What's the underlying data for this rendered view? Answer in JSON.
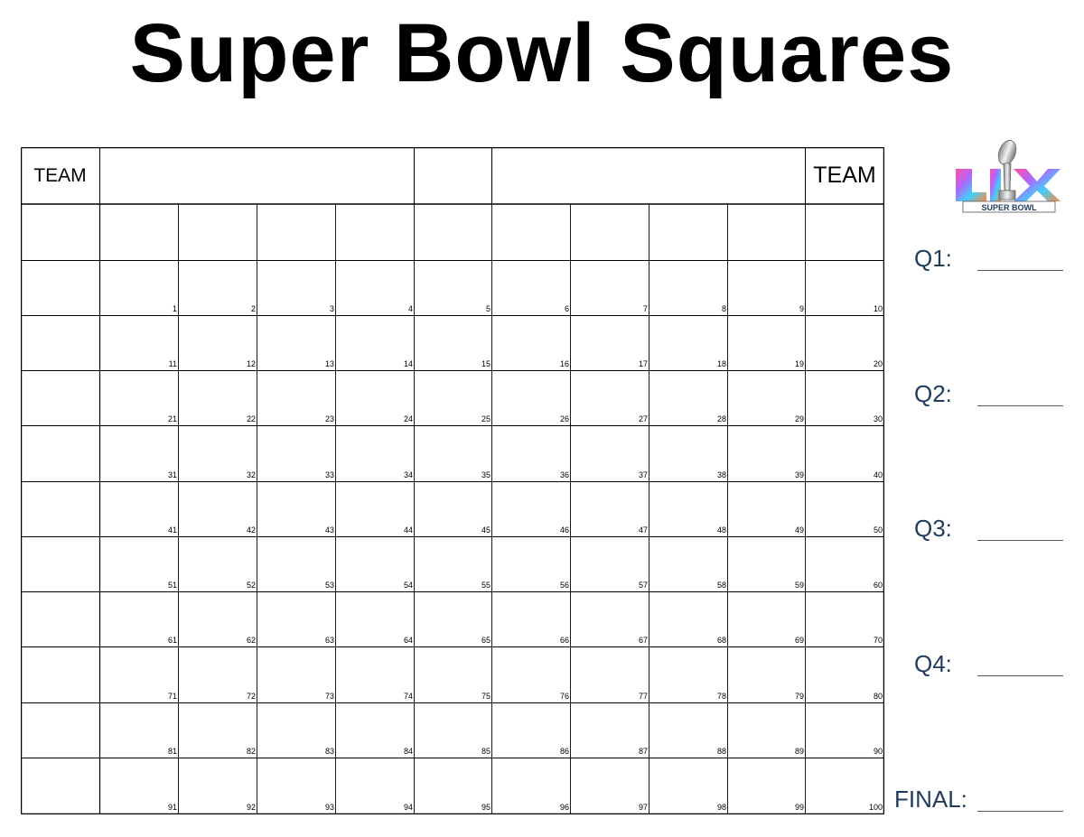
{
  "title": "Super Bowl Squares",
  "sheet": {
    "team_left": "TEAM",
    "team_right": "TEAM",
    "squares": [
      1,
      2,
      3,
      4,
      5,
      6,
      7,
      8,
      9,
      10,
      11,
      12,
      13,
      14,
      15,
      16,
      17,
      18,
      19,
      20,
      21,
      22,
      23,
      24,
      25,
      26,
      27,
      28,
      29,
      30,
      31,
      32,
      33,
      34,
      35,
      36,
      37,
      38,
      39,
      40,
      41,
      42,
      43,
      44,
      45,
      46,
      47,
      48,
      49,
      50,
      51,
      52,
      53,
      54,
      55,
      56,
      57,
      58,
      59,
      60,
      61,
      62,
      63,
      64,
      65,
      66,
      67,
      68,
      69,
      70,
      71,
      72,
      73,
      74,
      75,
      76,
      77,
      78,
      79,
      80,
      81,
      82,
      83,
      84,
      85,
      86,
      87,
      88,
      89,
      90,
      91,
      92,
      93,
      94,
      95,
      96,
      97,
      98,
      99,
      100
    ]
  },
  "logo": {
    "text": "SUPER BOWL",
    "icon": "super-bowl-lix-logo"
  },
  "scores": {
    "q1": "Q1:",
    "q2": "Q2:",
    "q3": "Q3:",
    "q4": "Q4:",
    "final": "FINAL:"
  },
  "colors": {
    "label": "#1f3c5e",
    "grid": "#000000"
  }
}
